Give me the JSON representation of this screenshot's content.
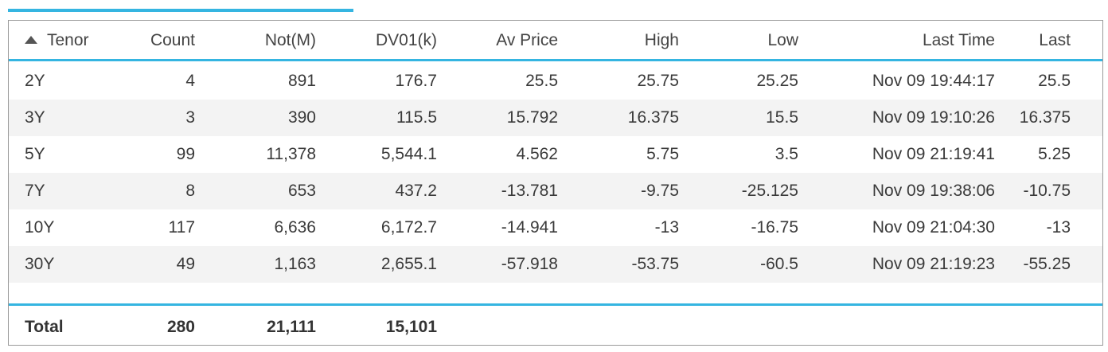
{
  "colors": {
    "accent": "#35b5e1",
    "alt_row": "#f3f3f3",
    "border": "#9a9a9a"
  },
  "header": {
    "sort_icon": "sort-ascending-icon",
    "columns": [
      "Tenor",
      "Count",
      "Not(M)",
      "DV01(k)",
      "Av Price",
      "High",
      "Low",
      "Last Time",
      "Last"
    ]
  },
  "rows": [
    [
      "2Y",
      "4",
      "891",
      "176.7",
      "25.5",
      "25.75",
      "25.25",
      "Nov 09 19:44:17",
      "25.5"
    ],
    [
      "3Y",
      "3",
      "390",
      "115.5",
      "15.792",
      "16.375",
      "15.5",
      "Nov 09 19:10:26",
      "16.375"
    ],
    [
      "5Y",
      "99",
      "11,378",
      "5,544.1",
      "4.562",
      "5.75",
      "3.5",
      "Nov 09 21:19:41",
      "5.25"
    ],
    [
      "7Y",
      "8",
      "653",
      "437.2",
      "-13.781",
      "-9.75",
      "-25.125",
      "Nov 09 19:38:06",
      "-10.75"
    ],
    [
      "10Y",
      "117",
      "6,636",
      "6,172.7",
      "-14.941",
      "-13",
      "-16.75",
      "Nov 09 21:04:30",
      "-13"
    ],
    [
      "30Y",
      "49",
      "1,163",
      "2,655.1",
      "-57.918",
      "-53.75",
      "-60.5",
      "Nov 09 21:19:23",
      "-55.25"
    ]
  ],
  "footer": {
    "label": "Total",
    "count": "280",
    "notional": "21,111",
    "dv01": "15,101"
  }
}
